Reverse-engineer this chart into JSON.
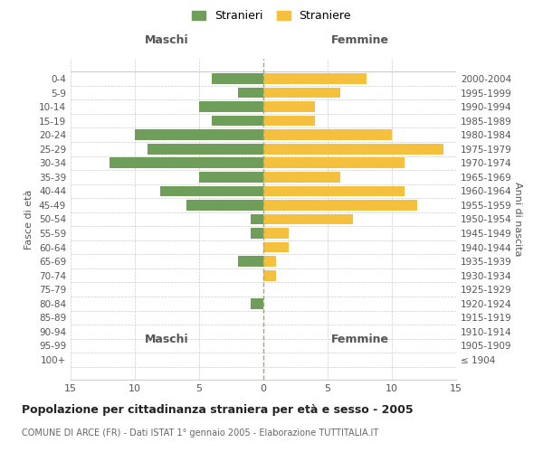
{
  "age_groups": [
    "100+",
    "95-99",
    "90-94",
    "85-89",
    "80-84",
    "75-79",
    "70-74",
    "65-69",
    "60-64",
    "55-59",
    "50-54",
    "45-49",
    "40-44",
    "35-39",
    "30-34",
    "25-29",
    "20-24",
    "15-19",
    "10-14",
    "5-9",
    "0-4"
  ],
  "birth_years": [
    "≤ 1904",
    "1905-1909",
    "1910-1914",
    "1915-1919",
    "1920-1924",
    "1925-1929",
    "1930-1934",
    "1935-1939",
    "1940-1944",
    "1945-1949",
    "1950-1954",
    "1955-1959",
    "1960-1964",
    "1965-1969",
    "1970-1974",
    "1975-1979",
    "1980-1984",
    "1985-1989",
    "1990-1994",
    "1995-1999",
    "2000-2004"
  ],
  "maschi": [
    0,
    0,
    0,
    0,
    1,
    0,
    0,
    2,
    0,
    1,
    1,
    6,
    8,
    5,
    12,
    9,
    10,
    4,
    5,
    2,
    4
  ],
  "femmine": [
    0,
    0,
    0,
    0,
    0,
    0,
    1,
    1,
    2,
    2,
    7,
    12,
    11,
    6,
    11,
    14,
    10,
    4,
    4,
    6,
    8
  ],
  "maschi_color": "#6f9e5b",
  "femmine_color": "#f5c03e",
  "title": "Popolazione per cittadinanza straniera per età e sesso - 2005",
  "subtitle": "COMUNE DI ARCE (FR) - Dati ISTAT 1° gennaio 2005 - Elaborazione TUTTITALIA.IT",
  "header_left": "Maschi",
  "header_right": "Femmine",
  "ylabel_left": "Fasce di età",
  "ylabel_right": "Anni di nascita",
  "legend_stranieri": "Stranieri",
  "legend_straniere": "Straniere",
  "xlim": 15,
  "bar_height": 0.75
}
